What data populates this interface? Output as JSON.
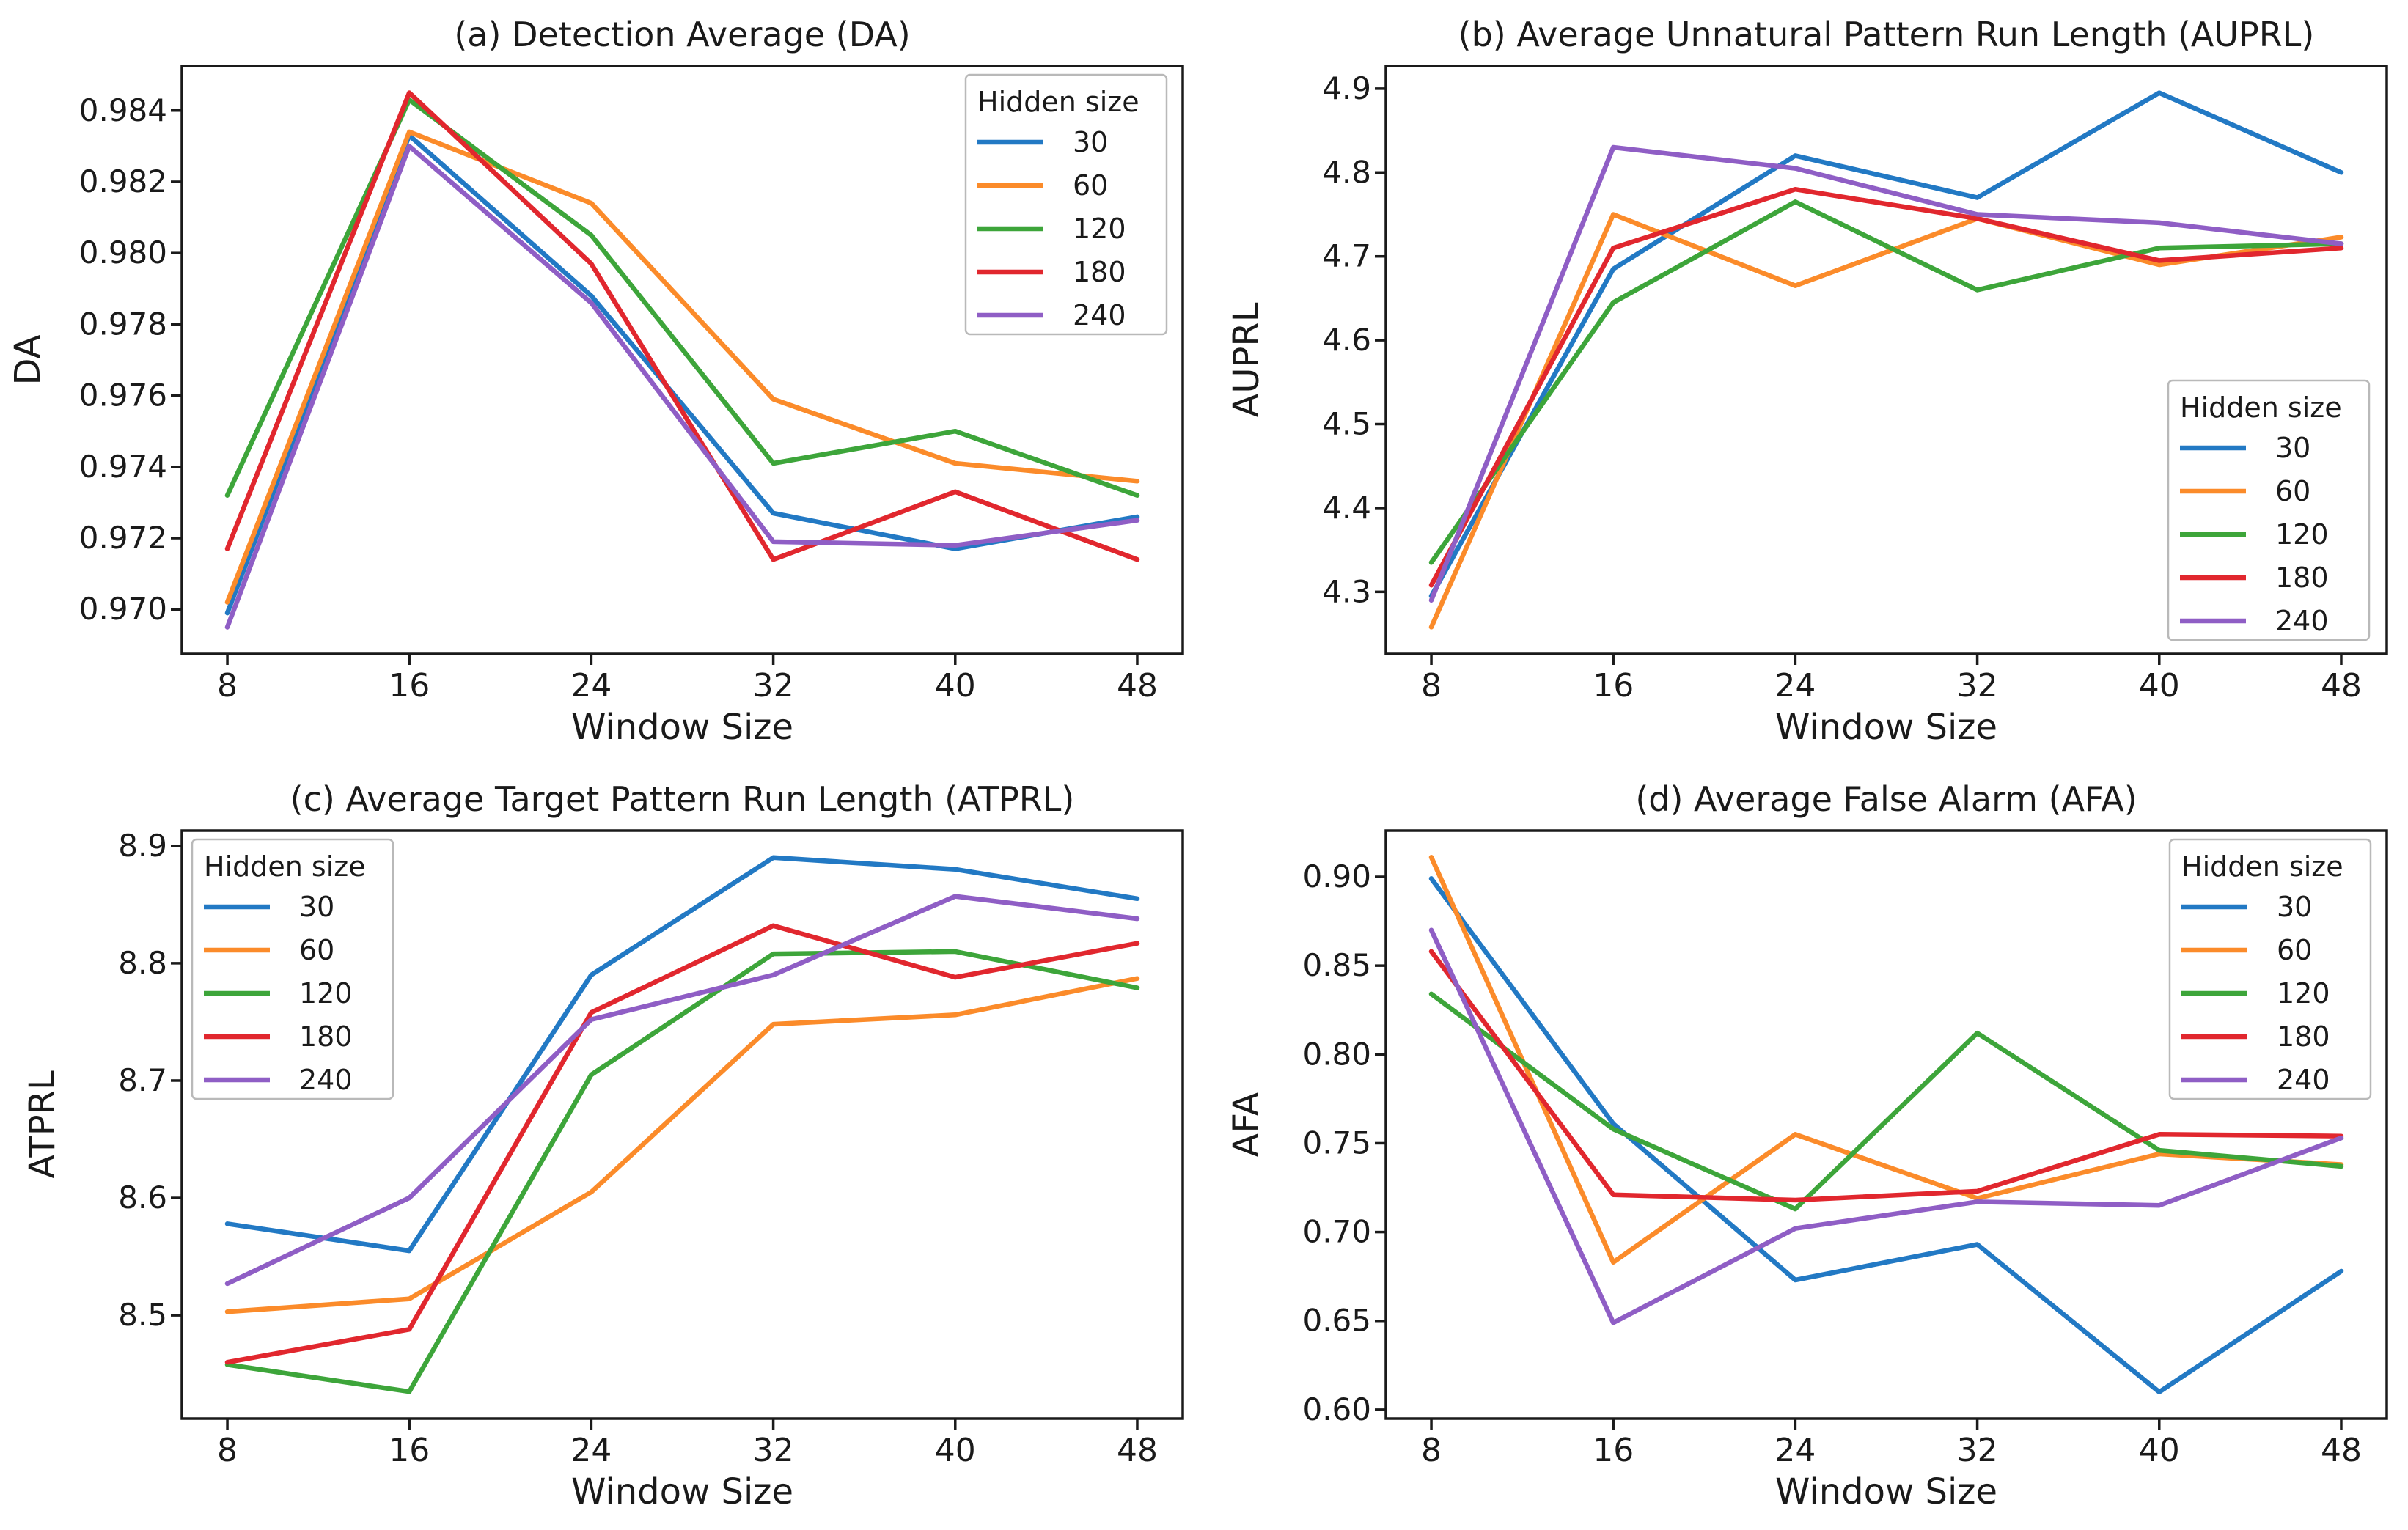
{
  "figure": {
    "background": "#ffffff",
    "text_color": "#1a1a1a",
    "spine_color": "#1a1a1a",
    "legend_title": "Hidden size",
    "series": [
      {
        "name": "30",
        "color": "#2279c4"
      },
      {
        "name": "60",
        "color": "#fb8b2a"
      },
      {
        "name": "120",
        "color": "#3da53a"
      },
      {
        "name": "180",
        "color": "#e1272e"
      },
      {
        "name": "240",
        "color": "#8f5ec5"
      }
    ]
  },
  "chart_data": [
    {
      "type": "line",
      "title": "(a) Detection Average (DA)",
      "xlabel": "Window Size",
      "ylabel": "DA",
      "x": [
        8,
        16,
        24,
        32,
        40,
        48
      ],
      "xlim": [
        6,
        50
      ],
      "ylim": [
        0.96875,
        0.98525
      ],
      "yticks": [
        "0.970",
        "0.972",
        "0.974",
        "0.976",
        "0.978",
        "0.980",
        "0.982",
        "0.984"
      ],
      "grid": false,
      "legend_position": "top-right",
      "series": [
        {
          "name": "30",
          "values": [
            0.9699,
            0.9833,
            0.9788,
            0.9727,
            0.9717,
            0.9726
          ]
        },
        {
          "name": "60",
          "values": [
            0.9702,
            0.9834,
            0.9814,
            0.9759,
            0.9741,
            0.9736
          ]
        },
        {
          "name": "120",
          "values": [
            0.9732,
            0.9843,
            0.9805,
            0.9741,
            0.975,
            0.9732
          ]
        },
        {
          "name": "180",
          "values": [
            0.9717,
            0.9845,
            0.9797,
            0.9714,
            0.9733,
            0.9714
          ]
        },
        {
          "name": "240",
          "values": [
            0.9695,
            0.983,
            0.9786,
            0.9719,
            0.9718,
            0.9725
          ]
        }
      ]
    },
    {
      "type": "line",
      "title": "(b) Average Unnatural Pattern Run Length (AUPRL)",
      "xlabel": "Window Size",
      "ylabel": "AUPRL",
      "x": [
        8,
        16,
        24,
        32,
        40,
        48
      ],
      "xlim": [
        6,
        50
      ],
      "ylim": [
        4.226,
        4.927
      ],
      "yticks": [
        "4.3",
        "4.4",
        "4.5",
        "4.6",
        "4.7",
        "4.8",
        "4.9"
      ],
      "grid": false,
      "legend_position": "bottom-right",
      "series": [
        {
          "name": "30",
          "values": [
            4.295,
            4.685,
            4.82,
            4.77,
            4.895,
            4.8
          ]
        },
        {
          "name": "60",
          "values": [
            4.258,
            4.75,
            4.665,
            4.745,
            4.69,
            4.723
          ]
        },
        {
          "name": "120",
          "values": [
            4.335,
            4.645,
            4.765,
            4.66,
            4.71,
            4.715
          ]
        },
        {
          "name": "180",
          "values": [
            4.308,
            4.71,
            4.78,
            4.745,
            4.695,
            4.71
          ]
        },
        {
          "name": "240",
          "values": [
            4.29,
            4.83,
            4.805,
            4.75,
            4.74,
            4.715
          ]
        }
      ]
    },
    {
      "type": "line",
      "title": "(c) Average Target Pattern Run Length (ATPRL)",
      "xlabel": "Window Size",
      "ylabel": "ATPRL",
      "x": [
        8,
        16,
        24,
        32,
        40,
        48
      ],
      "xlim": [
        6,
        50
      ],
      "ylim": [
        8.412,
        8.913
      ],
      "yticks": [
        "8.5",
        "8.6",
        "8.7",
        "8.8",
        "8.9"
      ],
      "grid": false,
      "legend_position": "top-left",
      "series": [
        {
          "name": "30",
          "values": [
            8.578,
            8.555,
            8.79,
            8.89,
            8.88,
            8.855
          ]
        },
        {
          "name": "60",
          "values": [
            8.503,
            8.514,
            8.605,
            8.748,
            8.756,
            8.787
          ]
        },
        {
          "name": "120",
          "values": [
            8.458,
            8.435,
            8.705,
            8.808,
            8.81,
            8.779
          ]
        },
        {
          "name": "180",
          "values": [
            8.46,
            8.488,
            8.758,
            8.832,
            8.788,
            8.817
          ]
        },
        {
          "name": "240",
          "values": [
            8.527,
            8.6,
            8.752,
            8.79,
            8.857,
            8.838
          ]
        }
      ]
    },
    {
      "type": "line",
      "title": "(d) Average False Alarm (AFA)",
      "xlabel": "Window Size",
      "ylabel": "AFA",
      "x": [
        8,
        16,
        24,
        32,
        40,
        48
      ],
      "xlim": [
        6,
        50
      ],
      "ylim": [
        0.595,
        0.926
      ],
      "yticks": [
        "0.60",
        "0.65",
        "0.70",
        "0.75",
        "0.80",
        "0.85",
        "0.90"
      ],
      "grid": false,
      "legend_position": "top-right",
      "series": [
        {
          "name": "30",
          "values": [
            0.899,
            0.761,
            0.673,
            0.693,
            0.61,
            0.678
          ]
        },
        {
          "name": "60",
          "values": [
            0.911,
            0.683,
            0.755,
            0.719,
            0.744,
            0.738
          ]
        },
        {
          "name": "120",
          "values": [
            0.834,
            0.758,
            0.713,
            0.812,
            0.746,
            0.737
          ]
        },
        {
          "name": "180",
          "values": [
            0.858,
            0.721,
            0.718,
            0.723,
            0.755,
            0.754
          ]
        },
        {
          "name": "240",
          "values": [
            0.87,
            0.649,
            0.702,
            0.717,
            0.715,
            0.753
          ]
        }
      ]
    }
  ]
}
